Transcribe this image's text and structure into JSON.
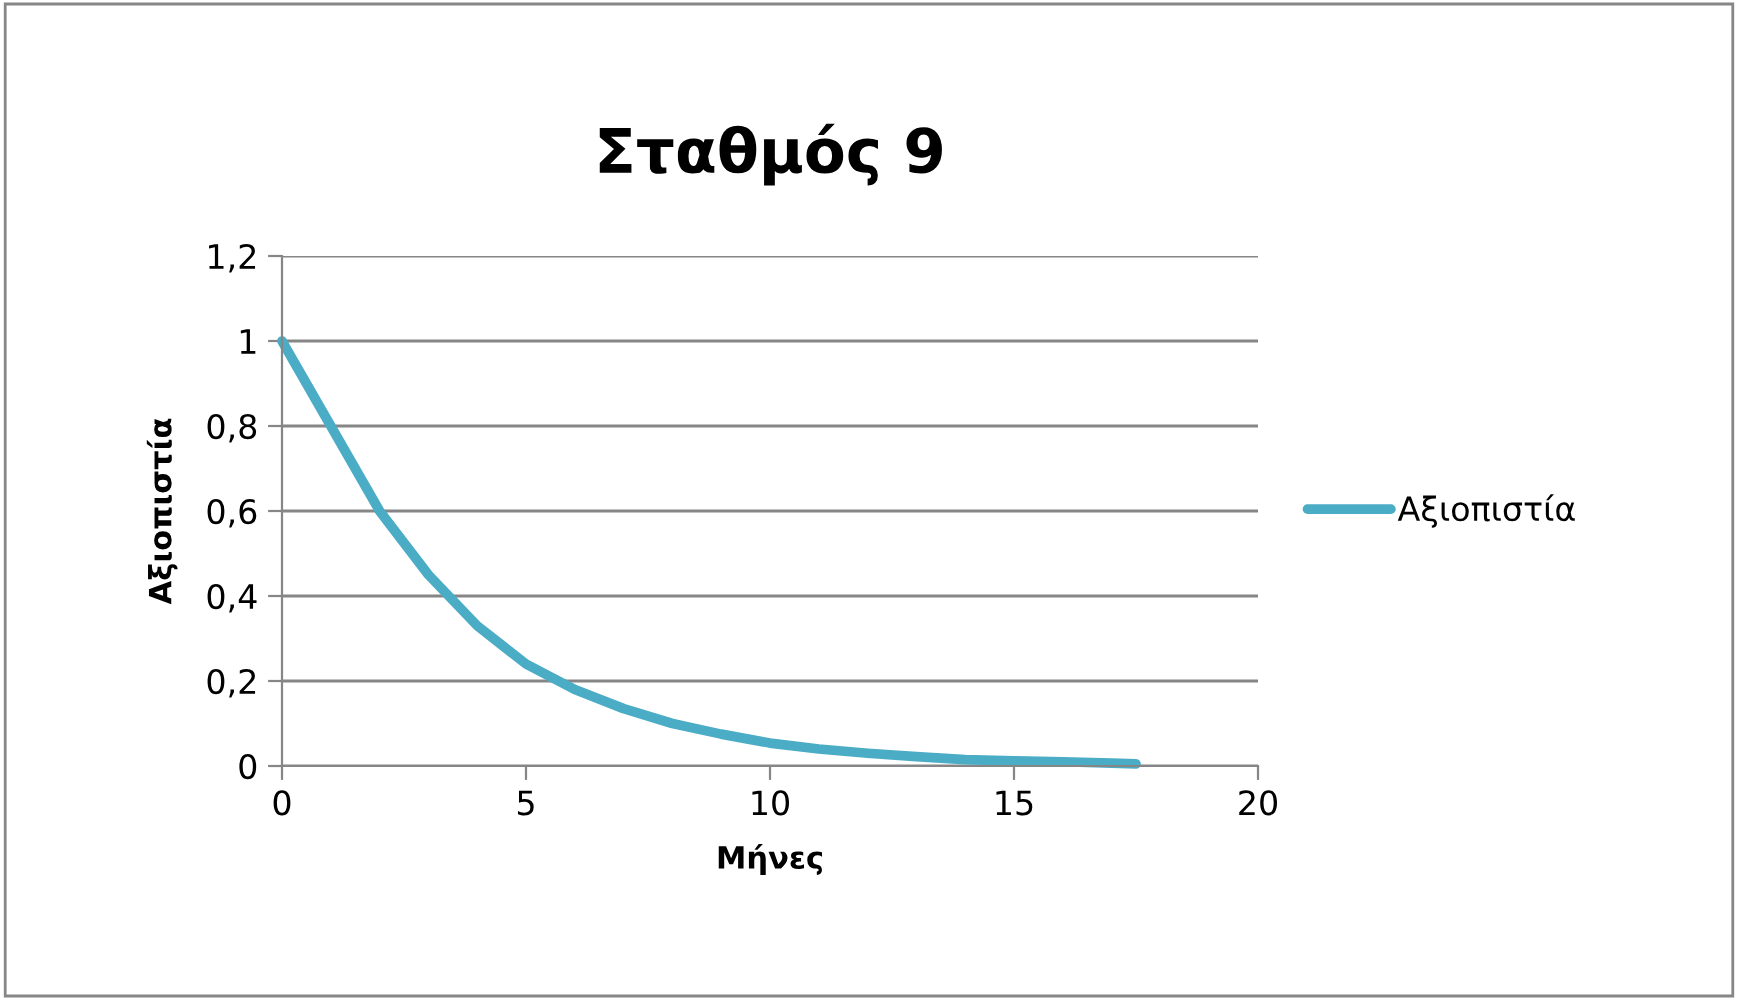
{
  "chart_data": {
    "type": "line",
    "title": "Σταθμός 9",
    "xlabel": "Μήνες",
    "ylabel": "Αξιοπιστία",
    "series": [
      {
        "name": "Αξιοπιστία",
        "color": "#4bacc6",
        "x": [
          0,
          1,
          2,
          3,
          4,
          5,
          6,
          7,
          8,
          9,
          10,
          11,
          12,
          13,
          14,
          15,
          16,
          17,
          17.5
        ],
        "values": [
          1,
          0.8,
          0.6,
          0.45,
          0.33,
          0.24,
          0.18,
          0.135,
          0.1,
          0.075,
          0.054,
          0.04,
          0.03,
          0.022,
          0.015,
          0.012,
          0.01,
          0.007,
          0.005
        ]
      }
    ],
    "xlim": [
      0,
      20
    ],
    "xticks": [
      0,
      5,
      10,
      15,
      20
    ],
    "ylim": [
      0,
      1.2
    ],
    "yticks": [
      0,
      {
        "value": 0.2,
        "label": "0,2"
      },
      {
        "value": 0.4,
        "label": "0,4"
      },
      {
        "value": 0.6,
        "label": "0,6"
      },
      {
        "value": 0.8,
        "label": "0,8"
      },
      1,
      {
        "value": 1.2,
        "label": "1,2"
      }
    ],
    "grid": "y",
    "legend": "right",
    "marker": "none",
    "line_style": "solid"
  }
}
